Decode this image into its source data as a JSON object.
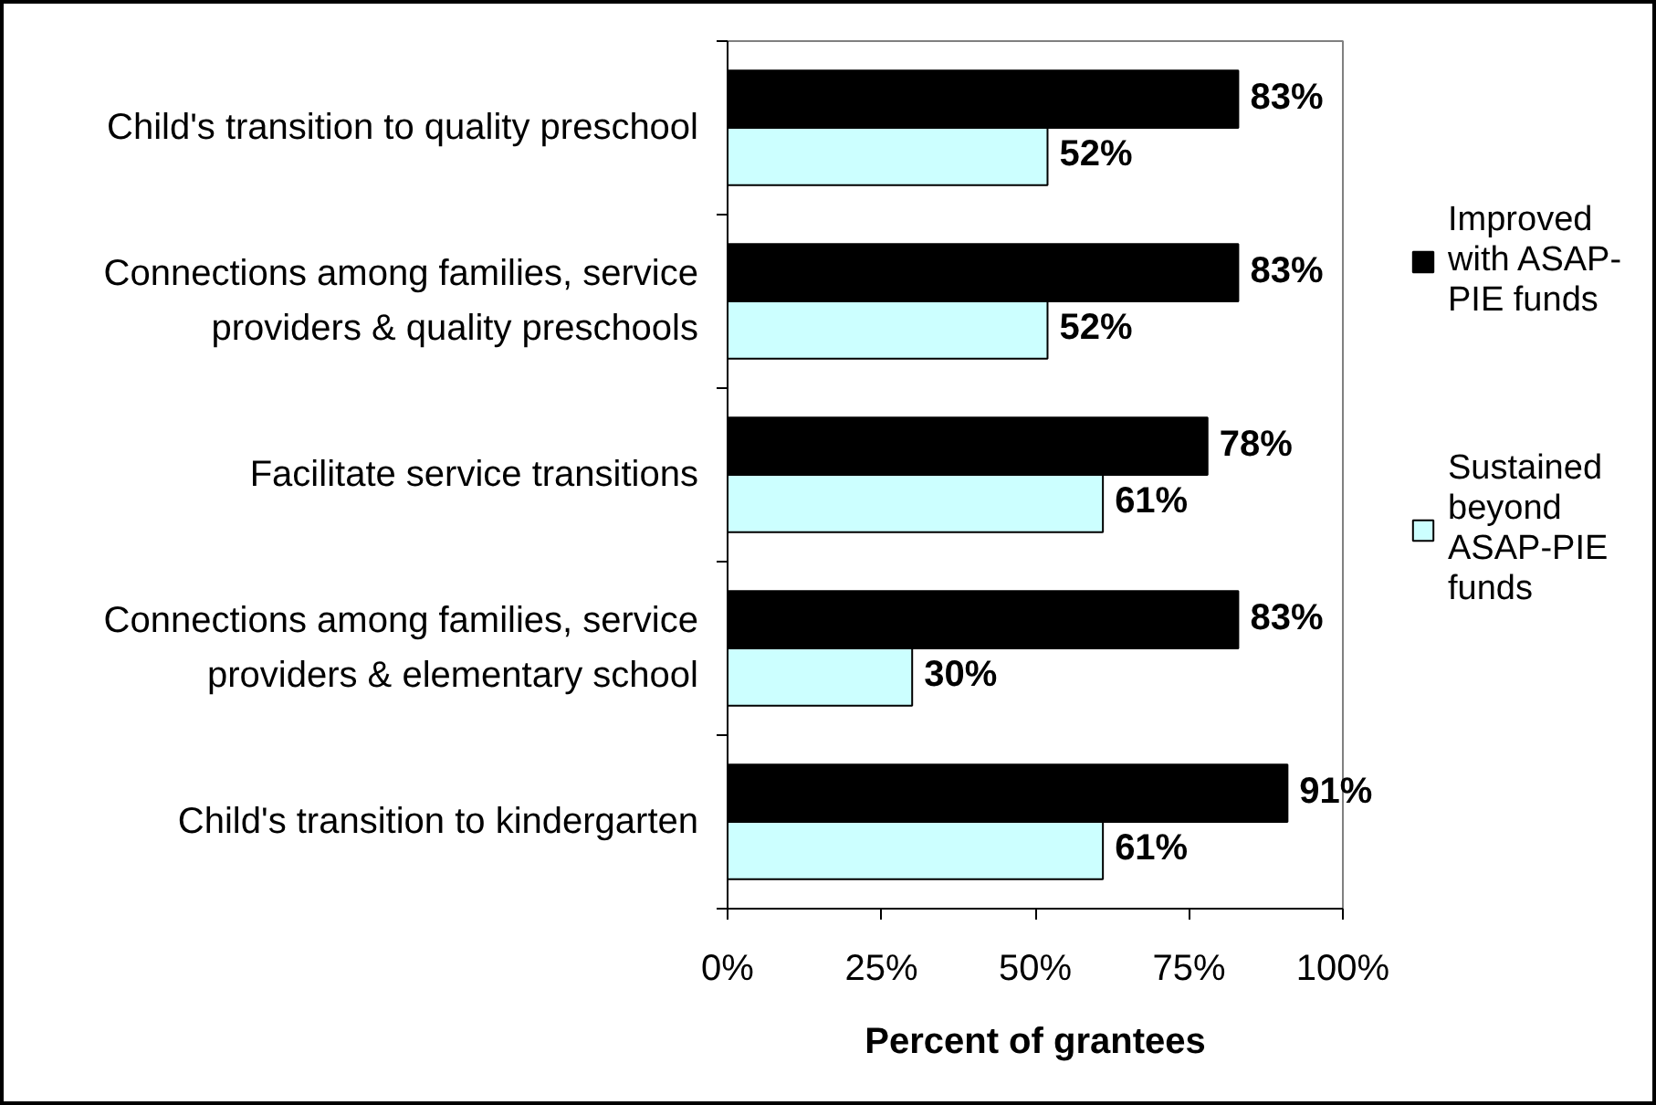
{
  "chart_data": {
    "type": "bar",
    "orientation": "horizontal",
    "categories": [
      "Child's transition to quality preschool",
      "Connections among families, service\nproviders & quality preschools",
      "Facilitate service transitions",
      "Connections among families, service\nproviders & elementary school",
      "Child's transition to kindergarten"
    ],
    "series": [
      {
        "name": "Improved with ASAP-PIE funds",
        "color": "#000000",
        "values": [
          83,
          83,
          78,
          83,
          91
        ],
        "value_labels": [
          "83%",
          "83%",
          "78%",
          "83%",
          "91%"
        ]
      },
      {
        "name": "Sustained beyond ASAP-PIE funds",
        "color": "#ccffff",
        "values": [
          52,
          52,
          61,
          30,
          61
        ],
        "value_labels": [
          "52%",
          "52%",
          "61%",
          "30%",
          "61%"
        ]
      }
    ],
    "xlabel": "Percent of grantees",
    "xlim": [
      0,
      100
    ],
    "xticks": [
      {
        "value": 0,
        "label": "0%"
      },
      {
        "value": 25,
        "label": "25%"
      },
      {
        "value": 50,
        "label": "50%"
      },
      {
        "value": 75,
        "label": "75%"
      },
      {
        "value": 100,
        "label": "100%"
      }
    ],
    "legend": "right"
  }
}
